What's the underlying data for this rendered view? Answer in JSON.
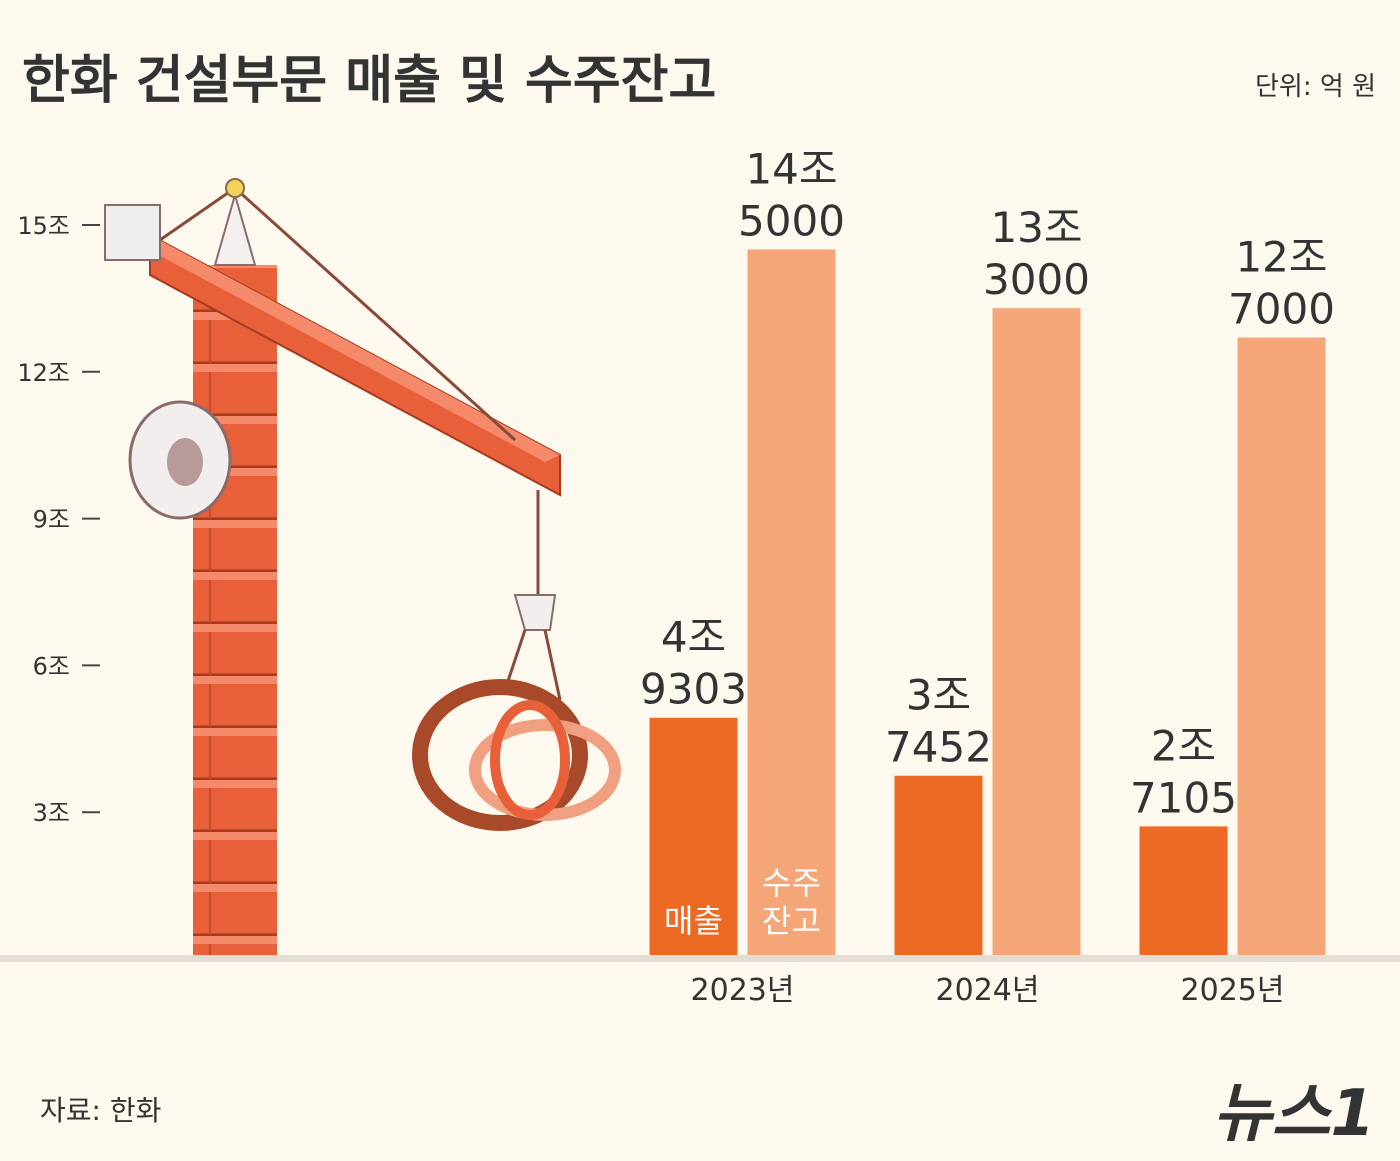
{
  "chart_data": {
    "type": "bar",
    "title": "한화 건설부문 매출 및 수주잔고",
    "unit": "단위: 억 원",
    "source": "자료: 한화",
    "logo": "뉴스1",
    "categories": [
      "2023년",
      "2024년",
      "2025년"
    ],
    "series": [
      {
        "name": "매출",
        "color": "#ec6a24",
        "values": [
          49303,
          37452,
          27105
        ],
        "value_labels": [
          [
            "4조",
            "9303"
          ],
          [
            "3조",
            "7452"
          ],
          [
            "2조",
            "7105"
          ]
        ]
      },
      {
        "name": "수주잔고",
        "color": "#f4a678",
        "values": [
          145000,
          133000,
          127000
        ],
        "value_labels": [
          [
            "14조",
            "5000"
          ],
          [
            "13조",
            "3000"
          ],
          [
            "12조",
            "7000"
          ]
        ]
      }
    ],
    "ylim": [
      0,
      150000
    ],
    "yticks": [
      {
        "value": 30000,
        "label": "3조"
      },
      {
        "value": 60000,
        "label": "6조"
      },
      {
        "value": 90000,
        "label": "9조"
      },
      {
        "value": 120000,
        "label": "12조"
      },
      {
        "value": 150000,
        "label": "15조"
      }
    ]
  }
}
